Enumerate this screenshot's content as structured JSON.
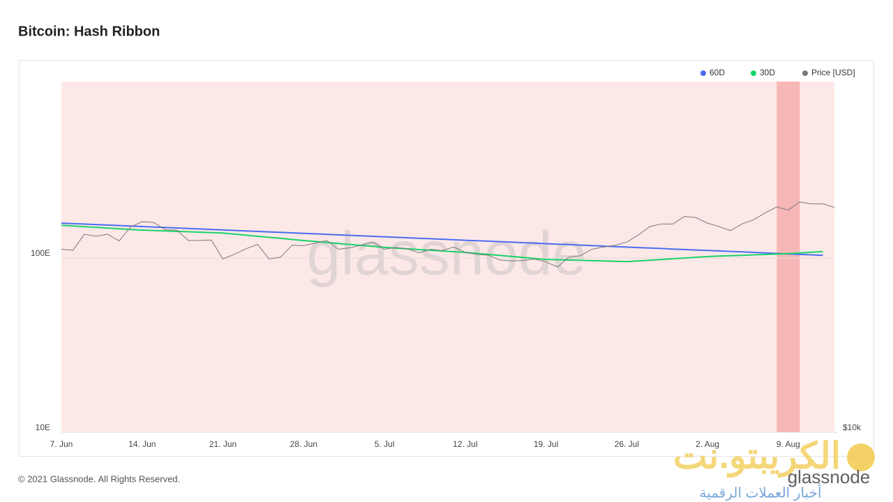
{
  "chart_data": {
    "type": "line",
    "title": "Bitcoin: Hash Ribbon",
    "categories": [
      "7. Jun",
      null,
      null,
      null,
      null,
      null,
      null,
      "14. Jun",
      null,
      null,
      null,
      null,
      null,
      null,
      "21. Jun",
      null,
      null,
      null,
      null,
      null,
      null,
      "28. Jun",
      null,
      null,
      null,
      null,
      null,
      null,
      "5. Jul",
      null,
      null,
      null,
      null,
      null,
      null,
      "12. Jul",
      null,
      null,
      null,
      null,
      null,
      null,
      "19. Jul",
      null,
      null,
      null,
      null,
      null,
      null,
      "26. Jul",
      null,
      null,
      null,
      null,
      null,
      null,
      "2. Aug",
      null,
      null,
      null,
      null,
      null,
      null,
      "9. Aug",
      null,
      null,
      null,
      null
    ],
    "series": [
      {
        "name": "60D",
        "color": "#4a6cf0",
        "values": [
          158.5,
          157.5,
          156.5,
          155.5,
          154.5,
          153.5,
          152.5,
          151.5,
          150.5,
          149.5,
          148.6,
          147.6,
          146.7,
          145.7,
          144.8,
          143.9,
          142.9,
          142.0,
          141.1,
          140.2,
          139.3,
          138.4,
          137.5,
          136.6,
          135.7,
          134.9,
          134.0,
          133.1,
          132.3,
          131.4,
          130.6,
          129.7,
          128.9,
          128.1,
          127.2,
          126.4,
          125.6,
          124.8,
          124.0,
          123.2,
          122.4,
          121.6,
          120.8,
          120.0,
          119.3,
          118.5,
          117.7,
          117.0,
          116.2,
          115.5,
          114.7,
          114.0,
          113.3,
          112.5,
          111.8,
          111.1,
          110.4,
          109.7,
          109.0,
          108.3,
          107.6,
          106.9,
          106.2,
          105.5,
          104.8,
          104.2,
          103.5,
          null
        ]
      },
      {
        "name": "30D",
        "color": "#19d36a",
        "values": [
          154.0,
          152.6,
          151.2,
          149.8,
          148.4,
          147.1,
          145.8,
          144.5,
          143.7,
          142.9,
          142.1,
          141.4,
          140.6,
          139.8,
          139.0,
          137.0,
          135.1,
          133.2,
          131.4,
          129.6,
          127.7,
          125.9,
          124.3,
          122.7,
          121.1,
          119.6,
          118.0,
          116.5,
          115.0,
          113.9,
          112.8,
          111.7,
          110.7,
          109.6,
          108.6,
          107.6,
          106.2,
          104.8,
          103.4,
          102.0,
          100.7,
          99.4,
          98.1,
          97.7,
          97.3,
          96.9,
          96.5,
          96.1,
          95.7,
          95.3,
          96.2,
          97.1,
          98.0,
          99.0,
          99.9,
          100.9,
          101.9,
          102.5,
          103.0,
          103.6,
          104.2,
          104.7,
          105.3,
          105.9,
          106.9,
          107.9,
          108.9,
          null
        ]
      },
      {
        "name": "Price [USD]",
        "color": "#777777",
        "axis": "y2",
        "values": [
          33500,
          33300,
          37000,
          36500,
          37000,
          35400,
          38800,
          40200,
          40000,
          38100,
          38000,
          35500,
          35500,
          35600,
          31400,
          32400,
          33600,
          34600,
          31400,
          31800,
          34400,
          34300,
          34900,
          35500,
          33500,
          33800,
          34400,
          35100,
          33500,
          33900,
          33600,
          32700,
          33500,
          33200,
          34000,
          32800,
          32400,
          32200,
          31200,
          31000,
          31100,
          31400,
          30800,
          29800,
          31800,
          32100,
          33500,
          34000,
          34400,
          35100,
          36800,
          38900,
          39600,
          39600,
          41600,
          41300,
          39800,
          38900,
          37900,
          39600,
          40700,
          42600,
          44300,
          43400,
          45800,
          45200,
          45200,
          44200
        ]
      }
    ],
    "ylim": [
      10,
      1000
    ],
    "yticks": [
      {
        "value": 10,
        "label": "10E"
      },
      {
        "value": 100,
        "label": "100E"
      }
    ],
    "y2lim": [
      10000,
      100000
    ],
    "y2ticks": [
      {
        "value": 10000,
        "label": "$10k"
      }
    ],
    "log_scale": true,
    "grid": true,
    "legend": "top-right",
    "shaded_ranges": [
      {
        "from": 0,
        "to": 67,
        "color": "#fde8e8"
      },
      {
        "from": 62,
        "to": 64,
        "color": "#f7b7b7"
      }
    ]
  },
  "footer": "© 2021 Glassnode. All Rights Reserved.",
  "watermarks": {
    "center": "glassnode",
    "logo": "الكريبتو.نت",
    "logo_sub": "glassnode",
    "logo_tagline": "أخبار العملات الرقمية"
  }
}
